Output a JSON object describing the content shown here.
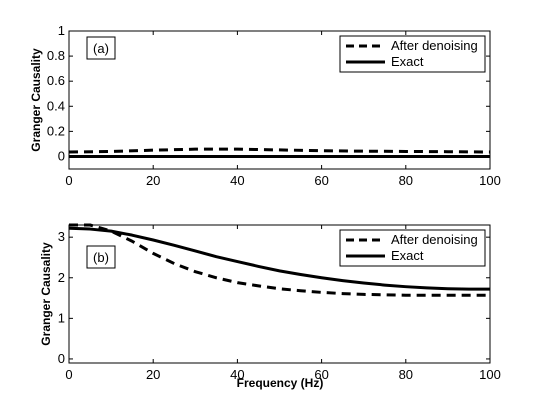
{
  "chart_data": [
    {
      "type": "line",
      "panel_label": "(a)",
      "xlabel": "",
      "ylabel": "Granger Causality",
      "xlim": [
        0,
        100
      ],
      "ylim": [
        -0.1,
        1
      ],
      "xticks": [
        0,
        20,
        40,
        60,
        80,
        100
      ],
      "yticks": [
        0,
        0.2,
        0.4,
        0.6,
        0.8,
        1
      ],
      "legend_position": "top-right",
      "series": [
        {
          "name": "After denoising",
          "style": "dashed",
          "x": [
            0,
            10,
            20,
            30,
            40,
            50,
            60,
            70,
            80,
            90,
            100
          ],
          "y": [
            0.035,
            0.04,
            0.05,
            0.058,
            0.058,
            0.052,
            0.046,
            0.042,
            0.04,
            0.038,
            0.035
          ]
        },
        {
          "name": "Exact",
          "style": "solid",
          "x": [
            0,
            100
          ],
          "y": [
            0,
            0
          ]
        }
      ]
    },
    {
      "type": "line",
      "panel_label": "(b)",
      "xlabel": "Frequency (Hz)",
      "ylabel": "Granger Causality",
      "xlim": [
        0,
        100
      ],
      "ylim": [
        -0.1,
        3.3
      ],
      "xticks": [
        0,
        20,
        40,
        60,
        80,
        100
      ],
      "yticks": [
        0,
        1,
        2,
        3
      ],
      "legend_position": "top-right",
      "series": [
        {
          "name": "After denoising",
          "style": "dashed",
          "x": [
            0,
            5,
            10,
            15,
            20,
            25,
            30,
            35,
            40,
            45,
            50,
            55,
            60,
            65,
            70,
            75,
            80,
            85,
            90,
            95,
            100
          ],
          "y": [
            3.3,
            3.3,
            3.15,
            2.9,
            2.6,
            2.35,
            2.15,
            2.0,
            1.88,
            1.8,
            1.73,
            1.68,
            1.64,
            1.61,
            1.59,
            1.58,
            1.57,
            1.57,
            1.57,
            1.57,
            1.57
          ]
        },
        {
          "name": "Exact",
          "style": "solid",
          "x": [
            0,
            5,
            10,
            15,
            20,
            25,
            30,
            35,
            40,
            45,
            50,
            55,
            60,
            65,
            70,
            75,
            80,
            85,
            90,
            95,
            100
          ],
          "y": [
            3.22,
            3.2,
            3.15,
            3.05,
            2.93,
            2.8,
            2.66,
            2.52,
            2.4,
            2.28,
            2.17,
            2.08,
            2.0,
            1.93,
            1.87,
            1.82,
            1.78,
            1.75,
            1.73,
            1.72,
            1.72
          ]
        }
      ]
    }
  ]
}
